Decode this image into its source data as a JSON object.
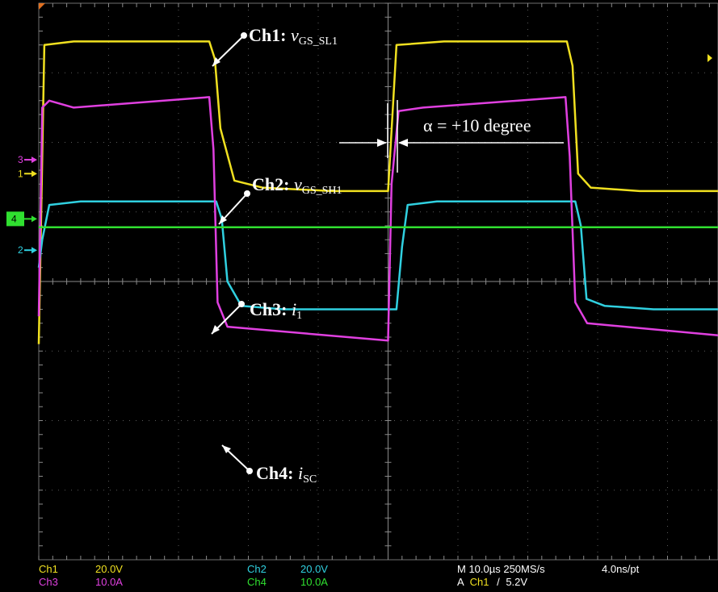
{
  "chart_data": {
    "type": "line",
    "instrument": "oscilloscope",
    "grid": true,
    "divisions": {
      "x": 10,
      "y": 8
    },
    "series": [
      {
        "channel": "1",
        "name": "Ch1: vGS_SL1",
        "color": "#f0e020",
        "x": [
          0,
          0.08,
          0.5,
          2.44,
          2.52,
          2.6,
          2.8,
          3.2,
          4.2,
          5.0,
          5.12,
          5.8,
          7.56,
          7.64,
          7.72,
          7.9,
          8.6,
          10.0
        ],
        "y": [
          -0.9,
          3.4,
          3.45,
          3.45,
          3.2,
          2.2,
          1.45,
          1.35,
          1.3,
          1.3,
          3.4,
          3.45,
          3.45,
          3.1,
          1.55,
          1.35,
          1.3,
          1.3
        ]
      },
      {
        "channel": "2",
        "name": "Ch2: vGS_SH1",
        "color": "#30d0e0",
        "x": [
          0,
          0.05,
          0.15,
          0.6,
          2.54,
          2.62,
          2.7,
          2.9,
          3.5,
          5.12,
          5.2,
          5.28,
          5.7,
          7.68,
          7.76,
          7.84,
          8.1,
          8.8,
          10.0
        ],
        "y": [
          0.2,
          0.6,
          1.1,
          1.15,
          1.15,
          0.9,
          0.0,
          -0.35,
          -0.4,
          -0.4,
          0.5,
          1.1,
          1.15,
          1.15,
          0.8,
          -0.25,
          -0.35,
          -0.4,
          -0.4
        ]
      },
      {
        "channel": "3",
        "name": "Ch3: i1",
        "color": "#e040e0",
        "x": [
          0,
          0.05,
          0.15,
          0.5,
          2.44,
          2.5,
          2.56,
          2.7,
          5.0,
          5.05,
          5.15,
          5.5,
          7.54,
          7.6,
          7.68,
          7.85,
          10.0
        ],
        "y": [
          -0.5,
          2.5,
          2.6,
          2.5,
          2.65,
          1.9,
          -0.3,
          -0.65,
          -0.85,
          1.4,
          2.45,
          2.5,
          2.65,
          1.8,
          -0.3,
          -0.6,
          -0.8
        ]
      },
      {
        "channel": "4",
        "name": "Ch4: iSC",
        "color": "#30e030",
        "x": [
          0,
          10.0
        ],
        "y": [
          0.78,
          0.78
        ]
      }
    ],
    "ground_markers": [
      {
        "label": "1",
        "color": "#f0e020",
        "div": 1.55
      },
      {
        "label": "2",
        "color": "#30d0e0",
        "div": 0.45
      },
      {
        "label": "3",
        "color": "#e040e0",
        "div": 1.75
      },
      {
        "label": "4",
        "color": "#30e030",
        "div": 0.9
      }
    ],
    "settings": [
      {
        "channel": "Ch1",
        "scale": "20.0V",
        "color": "#f0e020"
      },
      {
        "channel": "Ch2",
        "scale": "20.0V",
        "color": "#30d0e0"
      },
      {
        "channel": "Ch3",
        "scale": "10.0A",
        "color": "#e040e0"
      },
      {
        "channel": "Ch4",
        "scale": "10.0A",
        "color": "#30e030"
      }
    ],
    "timebase": "M 10.0µs 250MS/s",
    "resolution": "4.0ns/pt",
    "trigger": {
      "prefix": "A",
      "channel": "Ch1",
      "symbol": "/",
      "level": "5.2V"
    },
    "phase_annotation": "α = +10 degree"
  },
  "annotations": {
    "ch1": {
      "prefix": "Ch1: ",
      "var": "v",
      "sub": "GS_SL1"
    },
    "ch2": {
      "prefix": "Ch2: ",
      "var": "v",
      "sub": "GS_SH1"
    },
    "ch3": {
      "prefix": "Ch3: ",
      "var": "i",
      "sub": "1"
    },
    "ch4": {
      "prefix": "Ch4: ",
      "var": "i",
      "sub": "SC"
    }
  }
}
